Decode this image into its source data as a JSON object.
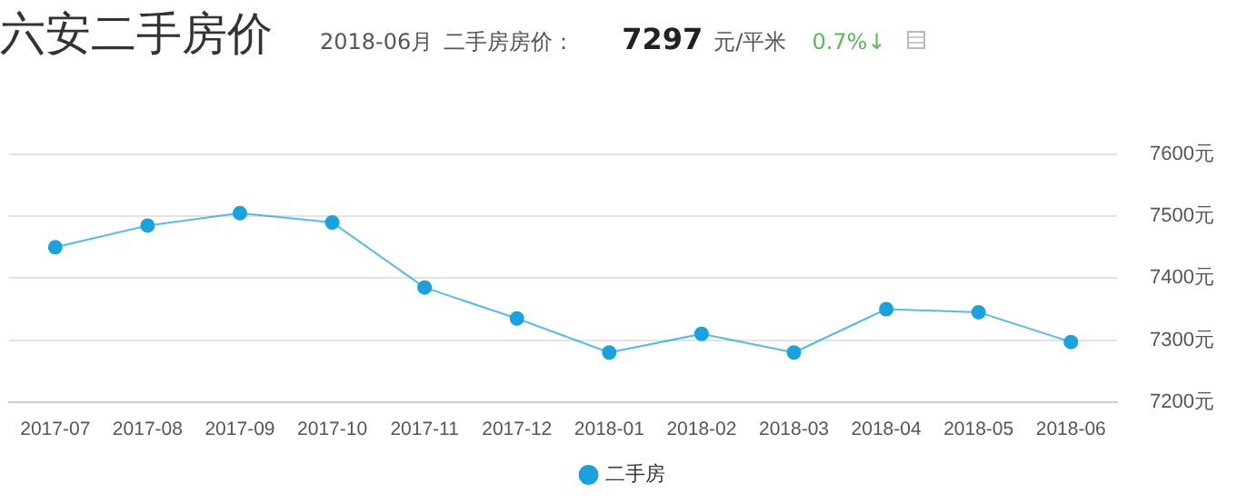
{
  "chart_data": {
    "type": "line",
    "title": "六安二手房价",
    "annotations": [
      "2018-06月",
      "二手房房价：",
      "7297",
      "元/平米",
      "0.7%↓"
    ],
    "categories": [
      "2017-07",
      "2017-08",
      "2017-09",
      "2017-10",
      "2017-11",
      "2017-12",
      "2018-01",
      "2018-02",
      "2018-03",
      "2018-04",
      "2018-05",
      "2018-06"
    ],
    "series": [
      {
        "name": "二手房",
        "color": "#1ba1dc",
        "values": [
          7450,
          7485,
          7505,
          7490,
          7385,
          7335,
          7280,
          7310,
          7280,
          7350,
          7345,
          7297
        ]
      }
    ],
    "ylim": [
      7200,
      7600
    ],
    "yticks": [
      {
        "value": 7200,
        "label": "7200元"
      },
      {
        "value": 7300,
        "label": "7300元"
      },
      {
        "value": 7400,
        "label": "7400元"
      },
      {
        "value": 7500,
        "label": "7500元"
      },
      {
        "value": 7600,
        "label": "7600元"
      }
    ],
    "grid": "y",
    "legend": "bottom",
    "marker": "circle",
    "line_style": "solid"
  }
}
